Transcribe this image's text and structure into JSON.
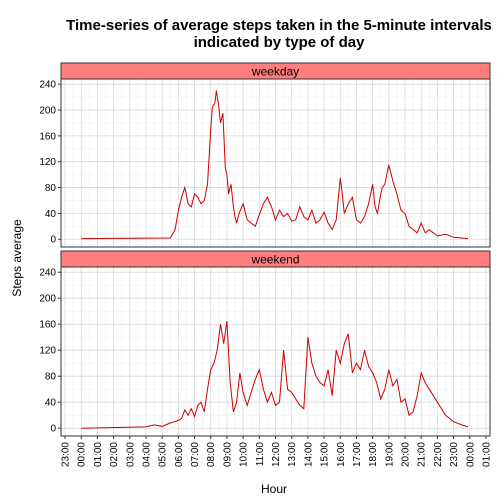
{
  "chart_data": {
    "type": "line",
    "title_line1": "Time-series of average steps taken in the 5-minute intervals",
    "title_line2": "indicated by type of day",
    "xlabel": "Hour",
    "ylabel": "Steps average",
    "ylim": [
      -12,
      248
    ],
    "y_ticks": [
      0,
      40,
      80,
      120,
      160,
      200,
      240
    ],
    "x_range_hours": [
      -1.25,
      25.25
    ],
    "x_ticks": [
      "23:00",
      "00:00",
      "01:00",
      "02:00",
      "03:00",
      "04:00",
      "05:00",
      "06:00",
      "07:00",
      "08:00",
      "09:00",
      "10:00",
      "11:00",
      "12:00",
      "13:00",
      "14:00",
      "15:00",
      "16:00",
      "17:00",
      "18:00",
      "19:00",
      "20:00",
      "21:00",
      "22:00",
      "23:00",
      "00:00",
      "01:00"
    ],
    "x_tick_hours": [
      -1,
      0,
      1,
      2,
      3,
      4,
      5,
      6,
      7,
      8,
      9,
      10,
      11,
      12,
      13,
      14,
      15,
      16,
      17,
      18,
      19,
      20,
      21,
      22,
      23,
      24,
      25
    ],
    "line_color": "#cc0000",
    "strip_fill": "#ff7f7f",
    "grid": true,
    "panels": [
      {
        "strip": "weekday",
        "x_hours": [
          0,
          5.5,
          5.8,
          6.0,
          6.2,
          6.4,
          6.6,
          6.8,
          7.0,
          7.2,
          7.4,
          7.6,
          7.8,
          8.0,
          8.1,
          8.25,
          8.35,
          8.5,
          8.6,
          8.75,
          8.9,
          9.0,
          9.1,
          9.25,
          9.4,
          9.5,
          9.6,
          9.75,
          10.0,
          10.25,
          10.5,
          10.75,
          11.0,
          11.25,
          11.5,
          11.75,
          12.0,
          12.25,
          12.5,
          12.75,
          13.0,
          13.25,
          13.5,
          13.75,
          14.0,
          14.25,
          14.5,
          14.75,
          15.0,
          15.25,
          15.5,
          15.75,
          16.0,
          16.1,
          16.25,
          16.5,
          16.75,
          17.0,
          17.25,
          17.5,
          17.75,
          18.0,
          18.15,
          18.3,
          18.5,
          18.6,
          18.75,
          19.0,
          19.25,
          19.5,
          19.75,
          20.0,
          20.25,
          20.5,
          20.75,
          21.0,
          21.25,
          21.5,
          22.0,
          22.5,
          23.0,
          23.5,
          23.9
        ],
        "values": [
          1,
          2,
          15,
          45,
          65,
          80,
          55,
          50,
          70,
          65,
          55,
          60,
          85,
          170,
          205,
          210,
          230,
          205,
          180,
          195,
          110,
          100,
          70,
          85,
          50,
          35,
          25,
          40,
          55,
          30,
          25,
          20,
          38,
          55,
          65,
          50,
          30,
          45,
          35,
          40,
          28,
          30,
          50,
          35,
          30,
          45,
          25,
          30,
          42,
          25,
          15,
          30,
          95,
          75,
          40,
          55,
          65,
          30,
          25,
          35,
          55,
          85,
          50,
          40,
          70,
          80,
          85,
          115,
          90,
          70,
          45,
          40,
          20,
          15,
          10,
          25,
          10,
          15,
          5,
          8,
          3,
          2,
          1
        ]
      },
      {
        "strip": "weekend",
        "x_hours": [
          0,
          4.0,
          4.5,
          5.0,
          5.5,
          6.0,
          6.2,
          6.4,
          6.6,
          6.8,
          7.0,
          7.2,
          7.4,
          7.6,
          7.8,
          8.0,
          8.2,
          8.4,
          8.6,
          8.8,
          9.0,
          9.2,
          9.4,
          9.6,
          9.8,
          10.0,
          10.25,
          10.5,
          10.75,
          11.0,
          11.25,
          11.5,
          11.75,
          12.0,
          12.25,
          12.5,
          12.75,
          13.0,
          13.25,
          13.5,
          13.75,
          14.0,
          14.25,
          14.5,
          14.75,
          15.0,
          15.25,
          15.5,
          15.75,
          16.0,
          16.25,
          16.5,
          16.75,
          17.0,
          17.25,
          17.5,
          17.75,
          18.0,
          18.25,
          18.5,
          18.75,
          19.0,
          19.25,
          19.5,
          19.75,
          20.0,
          20.25,
          20.5,
          20.75,
          21.0,
          21.25,
          21.5,
          22.0,
          22.5,
          23.0,
          23.5,
          23.9
        ],
        "values": [
          0,
          2,
          5,
          3,
          8,
          12,
          15,
          28,
          20,
          30,
          18,
          35,
          40,
          25,
          60,
          90,
          100,
          120,
          160,
          130,
          165,
          70,
          25,
          40,
          85,
          55,
          35,
          55,
          75,
          90,
          60,
          40,
          55,
          35,
          40,
          120,
          60,
          55,
          45,
          35,
          30,
          140,
          100,
          80,
          70,
          65,
          90,
          50,
          120,
          100,
          130,
          145,
          85,
          100,
          90,
          120,
          95,
          85,
          70,
          45,
          60,
          90,
          65,
          75,
          40,
          45,
          20,
          25,
          50,
          85,
          70,
          60,
          40,
          20,
          10,
          5,
          2
        ]
      }
    ]
  }
}
